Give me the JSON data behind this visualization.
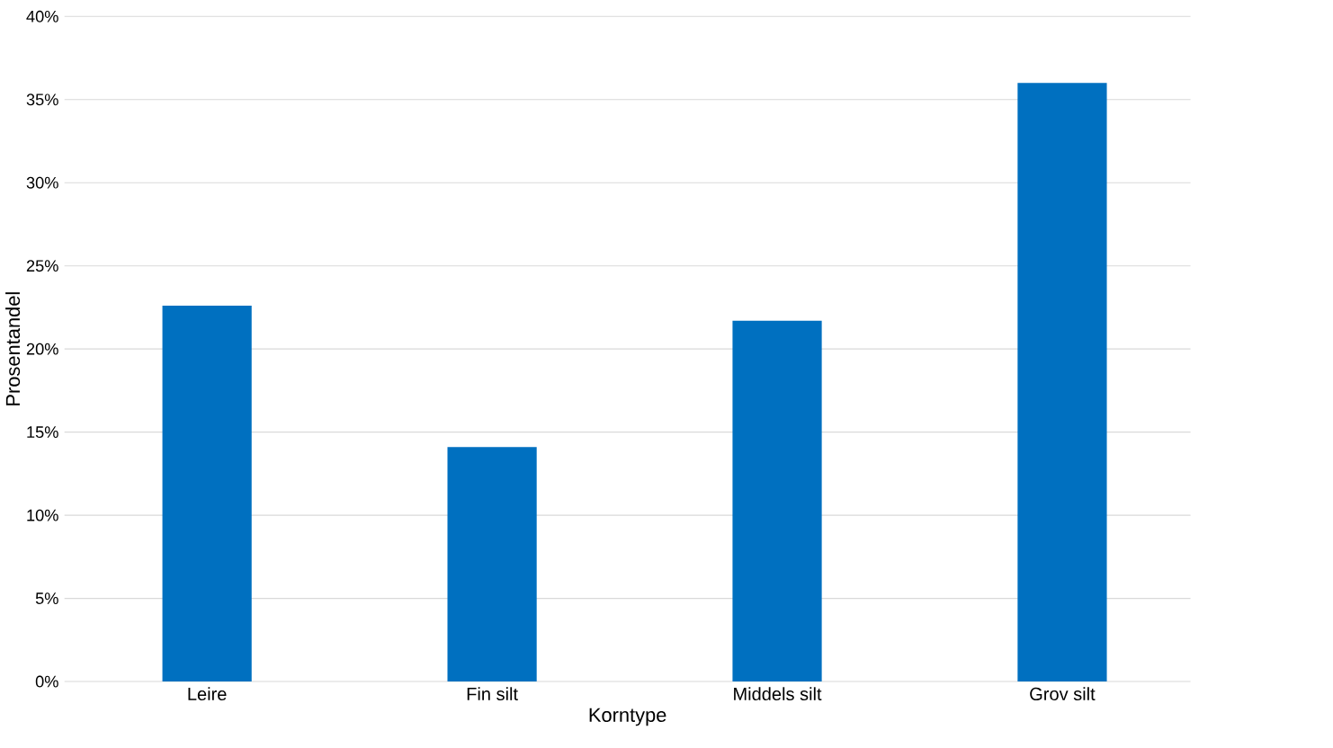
{
  "chart_data": {
    "type": "bar",
    "xlabel": "Korntype",
    "ylabel": "Prosentandel",
    "categories": [
      "Leire",
      "Fin silt",
      "Middels silt",
      "Grov silt"
    ],
    "values": [
      22.6,
      14.1,
      21.7,
      36.0
    ],
    "color": "#0070c0",
    "ylim": [
      0,
      40
    ],
    "yticks": [
      {
        "value": 0,
        "label": "0%"
      },
      {
        "value": 5,
        "label": "5%"
      },
      {
        "value": 10,
        "label": "10%"
      },
      {
        "value": 15,
        "label": "15%"
      },
      {
        "value": 20,
        "label": "20%"
      },
      {
        "value": 25,
        "label": "25%"
      },
      {
        "value": 30,
        "label": "30%"
      },
      {
        "value": 35,
        "label": "35%"
      },
      {
        "value": 40,
        "label": "40%"
      }
    ],
    "grid": "y"
  }
}
